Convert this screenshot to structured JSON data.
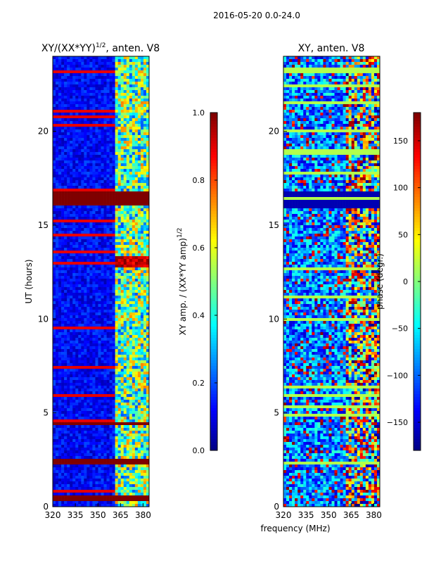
{
  "suptitle": "2016-05-20 0.0-24.0",
  "colors": {
    "jet": [
      "#00007f",
      "#0000ff",
      "#007fff",
      "#00ffff",
      "#7fff7f",
      "#ffff00",
      "#ff7f00",
      "#ff0000",
      "#7f0000"
    ],
    "axis": "#000000",
    "background": "#ffffff"
  },
  "chart_data": [
    {
      "type": "heatmap",
      "title": "XY/(XX*YY)",
      "title_superscript": "1/2",
      "title_suffix": ", anten. V8",
      "xlabel": "",
      "ylabel": "UT (hours)",
      "xlim": [
        320,
        384
      ],
      "ylim": [
        0,
        24
      ],
      "xticks": [
        320,
        335,
        350,
        365,
        380
      ],
      "yticks": [
        0,
        5,
        10,
        15,
        20
      ],
      "colorbar": {
        "label": "XY amp. / (XX*YY amp)",
        "label_superscript": "1/2",
        "range": [
          0.0,
          1.0
        ],
        "ticks": [
          "0.0",
          "0.2",
          "0.4",
          "0.6",
          "0.8",
          "1.0"
        ]
      },
      "features": {
        "high_band_start_mhz": 361,
        "saturated_hours": [
          [
            16.0,
            16.8
          ],
          [
            0.3,
            0.6
          ],
          [
            2.3,
            2.6
          ],
          [
            4.3,
            4.5
          ]
        ],
        "hot_spot_hours": [
          12.8,
          13.4
        ]
      }
    },
    {
      "type": "heatmap",
      "title": "XY, anten. V8",
      "xlabel": "frequency (MHz)",
      "ylabel": "",
      "xlim": [
        320,
        384
      ],
      "ylim": [
        0,
        24
      ],
      "xticks": [
        320,
        335,
        350,
        365,
        380
      ],
      "yticks": [
        0,
        5,
        10,
        15,
        20
      ],
      "colorbar": {
        "label": "phase (degr.)",
        "range": [
          -180,
          180
        ],
        "ticks": [
          "−150",
          "−100",
          "−50",
          "0",
          "50",
          "100",
          "150"
        ]
      },
      "features": {
        "high_band_start_mhz": 361,
        "masked_hours": [
          [
            15.9,
            16.8
          ]
        ]
      }
    }
  ]
}
